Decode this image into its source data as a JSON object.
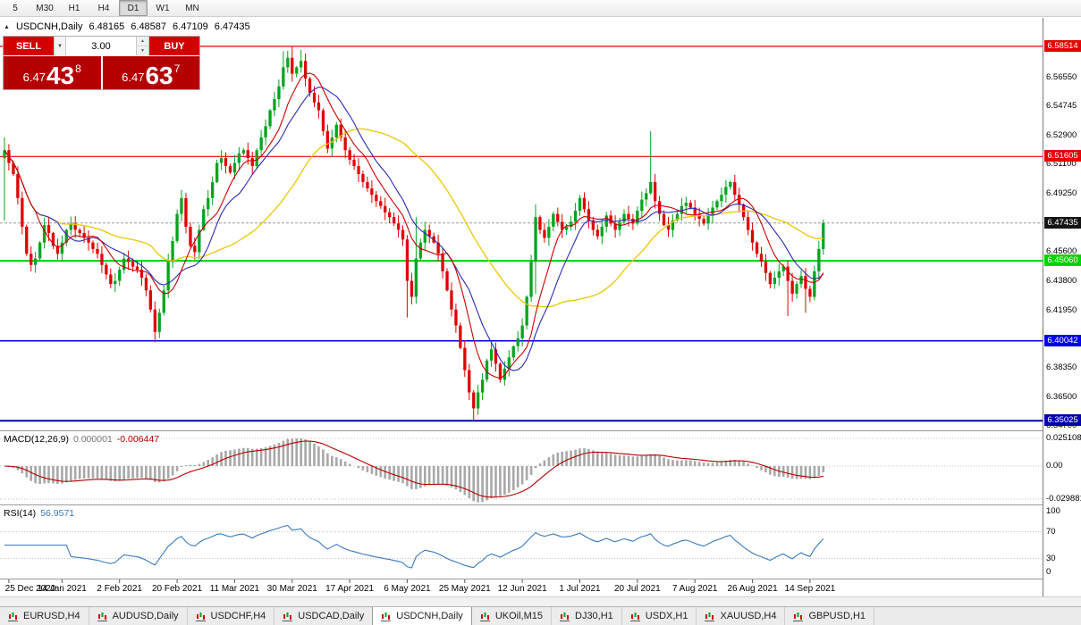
{
  "toolbar": {
    "timeframes": [
      "5",
      "M30",
      "H1",
      "H4",
      "D1",
      "W1",
      "MN"
    ],
    "active_timeframe": "D1"
  },
  "chart_header": {
    "symbol": "USDCNH,Daily",
    "open": "6.48165",
    "high": "6.48587",
    "low": "6.47109",
    "close": "6.47435"
  },
  "trade_panel": {
    "sell_label": "SELL",
    "buy_label": "BUY",
    "volume": "3.00",
    "sell_price": {
      "prefix": "6.47",
      "big": "43",
      "sup": "8"
    },
    "buy_price": {
      "prefix": "6.47",
      "big": "63",
      "sup": "7"
    }
  },
  "price_axis": {
    "ticks": [
      "6.56550",
      "6.54745",
      "6.52900",
      "6.51100",
      "6.49250",
      "6.45600",
      "6.43800",
      "6.41950",
      "6.38350",
      "6.36500",
      "6.34700"
    ]
  },
  "levels": [
    {
      "label": "6.58514",
      "value": 6.58514,
      "color": "#e60000",
      "width": 1.2
    },
    {
      "label": "6.51605",
      "value": 6.51605,
      "color": "#e60000",
      "width": 1.2
    },
    {
      "label": "6.45060",
      "value": 6.4506,
      "color": "#00d200",
      "width": 2
    },
    {
      "label": "6.40042",
      "value": 6.40042,
      "color": "#0000e6",
      "width": 1.5
    },
    {
      "label": "6.35025",
      "value": 6.35025,
      "color": "#0000aa",
      "width": 2
    }
  ],
  "current_price": {
    "label": "6.47435",
    "value": 6.47435,
    "badge_color": "#141414"
  },
  "macd_panel": {
    "name": "MACD(12,26,9)",
    "value_main": "0.000001",
    "value_signal": "-0.006447",
    "ticks": [
      {
        "label": "0.025108",
        "value": 0.025108
      },
      {
        "label": "0.00",
        "value": 0
      },
      {
        "label": "-0.029881",
        "value": -0.029881
      }
    ]
  },
  "rsi_panel": {
    "name": "RSI(14)",
    "value": "56.9571",
    "ticks": [
      {
        "label": "100",
        "value": 100
      },
      {
        "label": "70",
        "value": 70
      },
      {
        "label": "30",
        "value": 30
      },
      {
        "label": "0",
        "value": 0
      }
    ],
    "levels": [
      70,
      30
    ]
  },
  "date_axis": {
    "labels": [
      "25 Dec 2020",
      "14 Jan 2021",
      "2 Feb 2021",
      "20 Feb 2021",
      "11 Mar 2021",
      "30 Mar 2021",
      "17 Apr 2021",
      "6 May 2021",
      "25 May 2021",
      "12 Jun 2021",
      "1 Jul 2021",
      "20 Jul 2021",
      "7 Aug 2021",
      "26 Aug 2021",
      "14 Sep 2021"
    ]
  },
  "tabs": {
    "active": "USDCNH,Daily",
    "items": [
      "EURUSD,H4",
      "AUDUSD,Daily",
      "USDCHF,H4",
      "USDCAD,Daily",
      "USDCNH,Daily",
      "UKOil,M15",
      "DJ30,H1",
      "USDX,H1",
      "XAUUSD,H4",
      "GBPUSD,H1"
    ]
  },
  "chart_data": {
    "type": "candlestick",
    "symbol": "USDCNH",
    "timeframe": "Daily",
    "ohlc_current": {
      "open": 6.48165,
      "high": 6.48587,
      "low": 6.47109,
      "close": 6.47435
    },
    "y_range": [
      6.347,
      6.5851
    ],
    "x_range": [
      "25 Dec 2020",
      "17 Sep 2021"
    ],
    "closes": [
      6.52,
      6.512,
      6.505,
      6.49,
      6.472,
      6.455,
      6.448,
      6.452,
      6.462,
      6.473,
      6.468,
      6.46,
      6.455,
      6.462,
      6.47,
      6.474,
      6.47,
      6.468,
      6.465,
      6.462,
      6.458,
      6.455,
      6.448,
      6.442,
      6.436,
      6.438,
      6.445,
      6.452,
      6.45,
      6.447,
      6.445,
      6.44,
      6.432,
      6.42,
      6.406,
      6.418,
      6.432,
      6.45,
      6.463,
      6.48,
      6.49,
      6.472,
      6.46,
      6.456,
      6.47,
      6.483,
      6.49,
      6.5,
      6.512,
      6.515,
      6.51,
      6.506,
      6.512,
      6.518,
      6.52,
      6.515,
      6.51,
      6.52,
      6.528,
      6.535,
      6.545,
      6.552,
      6.56,
      6.572,
      6.578,
      6.568,
      6.572,
      6.576,
      6.565,
      6.556,
      6.55,
      6.545,
      6.532,
      6.521,
      6.528,
      6.536,
      6.528,
      6.52,
      6.514,
      6.51,
      6.505,
      6.5,
      6.496,
      6.492,
      6.488,
      6.485,
      6.481,
      6.478,
      6.474,
      6.47,
      6.464,
      6.438,
      6.428,
      6.452,
      6.462,
      6.47,
      6.466,
      6.462,
      6.455,
      6.444,
      6.432,
      6.42,
      6.41,
      6.396,
      6.382,
      6.368,
      6.358,
      6.368,
      6.376,
      6.388,
      6.395,
      6.386,
      6.376,
      6.383,
      6.39,
      6.397,
      6.402,
      6.41,
      6.428,
      6.45,
      6.478,
      6.47,
      6.465,
      6.472,
      6.48,
      6.475,
      6.47,
      6.472,
      6.475,
      6.482,
      6.49,
      6.483,
      6.476,
      6.47,
      6.466,
      6.472,
      6.479,
      6.474,
      6.47,
      6.475,
      6.48,
      6.477,
      6.474,
      6.482,
      6.489,
      6.493,
      6.5,
      6.488,
      6.48,
      6.473,
      6.47,
      6.476,
      6.48,
      6.485,
      6.487,
      6.484,
      6.48,
      6.477,
      6.474,
      6.479,
      6.484,
      6.488,
      6.492,
      6.497,
      6.5,
      6.492,
      6.486,
      6.478,
      6.47,
      6.462,
      6.455,
      6.45,
      6.443,
      6.436,
      6.44,
      6.444,
      6.447,
      6.438,
      6.43,
      6.436,
      6.441,
      6.433,
      6.428,
      6.444,
      6.458,
      6.47435
    ],
    "spikes": {
      "0": [
        6.528,
        6.476
      ],
      "34": [
        null,
        6.3995
      ],
      "63": [
        6.582,
        null
      ],
      "65": [
        6.58514,
        null
      ],
      "67": [
        6.583,
        null
      ],
      "91": [
        null,
        6.415
      ],
      "93": [
        6.478,
        null
      ],
      "106": [
        null,
        6.3505
      ],
      "120": [
        6.486,
        6.43
      ],
      "146": [
        6.532,
        null
      ],
      "177": [
        null,
        6.416
      ],
      "181": [
        null,
        6.418
      ]
    },
    "date_indices": [
      1,
      13,
      26,
      39,
      52,
      65,
      78,
      91,
      104,
      117,
      130,
      143,
      156,
      169,
      182
    ],
    "colors": {
      "up": "#00a41e",
      "down": "#e10000",
      "ma_fast": "#cc0000",
      "ma_medium": "#2a2ab4",
      "ma_slow": "#eac800",
      "macd_hist": "#a8a8a8",
      "macd_signal": "#b40000",
      "rsi_line": "#3a7abf"
    },
    "indicators": [
      {
        "name": "MACD",
        "params": [
          12,
          26,
          9
        ]
      },
      {
        "name": "RSI",
        "params": [
          14
        ]
      }
    ]
  }
}
